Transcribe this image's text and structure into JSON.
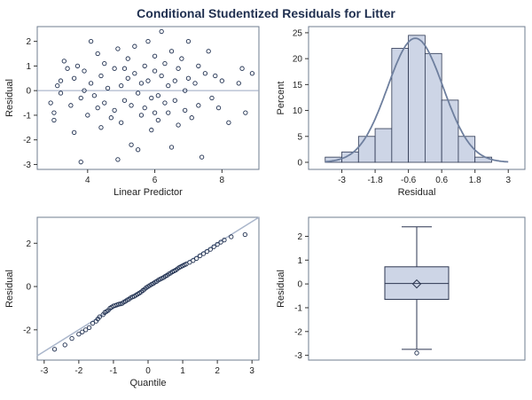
{
  "title": "Conditional Studentized Residuals for Litter",
  "chart_data": [
    {
      "type": "scatter",
      "xlabel": "Linear Predictor",
      "ylabel": "Residual",
      "xlim": [
        2.5,
        9.1
      ],
      "ylim": [
        -3.2,
        2.6
      ],
      "xticks": [
        4,
        6,
        8
      ],
      "yticks": [
        -3,
        -2,
        -1,
        0,
        1,
        2
      ],
      "reference_line_y": 0,
      "points": [
        [
          2.9,
          -0.5
        ],
        [
          3.0,
          -0.9
        ],
        [
          3.0,
          -1.2
        ],
        [
          3.1,
          0.2
        ],
        [
          3.2,
          0.4
        ],
        [
          3.2,
          -0.1
        ],
        [
          3.3,
          1.2
        ],
        [
          3.4,
          0.9
        ],
        [
          3.5,
          -0.6
        ],
        [
          3.6,
          0.5
        ],
        [
          3.6,
          -1.7
        ],
        [
          3.7,
          1.0
        ],
        [
          3.8,
          -0.3
        ],
        [
          3.9,
          0.0
        ],
        [
          3.9,
          0.8
        ],
        [
          4.0,
          -1.0
        ],
        [
          4.1,
          0.3
        ],
        [
          4.1,
          2.0
        ],
        [
          4.2,
          -0.2
        ],
        [
          4.3,
          1.5
        ],
        [
          4.4,
          -1.5
        ],
        [
          4.4,
          0.6
        ],
        [
          4.5,
          -0.5
        ],
        [
          4.5,
          1.1
        ],
        [
          4.6,
          0.1
        ],
        [
          4.7,
          -1.1
        ],
        [
          4.8,
          0.9
        ],
        [
          4.8,
          -0.8
        ],
        [
          4.9,
          1.7
        ],
        [
          5.0,
          0.2
        ],
        [
          5.0,
          -1.3
        ],
        [
          5.1,
          -0.4
        ],
        [
          5.2,
          0.5
        ],
        [
          5.2,
          1.3
        ],
        [
          5.3,
          -2.2
        ],
        [
          5.3,
          -0.6
        ],
        [
          5.4,
          0.7
        ],
        [
          5.4,
          1.8
        ],
        [
          5.5,
          -0.1
        ],
        [
          5.5,
          -2.4
        ],
        [
          5.6,
          0.3
        ],
        [
          5.6,
          -1.0
        ],
        [
          5.7,
          1.0
        ],
        [
          5.7,
          -0.7
        ],
        [
          5.8,
          0.4
        ],
        [
          5.8,
          2.0
        ],
        [
          5.9,
          -0.3
        ],
        [
          5.9,
          -1.6
        ],
        [
          6.0,
          0.8
        ],
        [
          6.0,
          1.4
        ],
        [
          6.1,
          -0.2
        ],
        [
          6.1,
          -1.2
        ],
        [
          6.2,
          0.6
        ],
        [
          6.2,
          2.4
        ],
        [
          6.3,
          -0.5
        ],
        [
          6.3,
          1.1
        ],
        [
          6.4,
          -0.9
        ],
        [
          6.4,
          0.2
        ],
        [
          6.5,
          1.6
        ],
        [
          6.5,
          -2.3
        ],
        [
          6.6,
          -0.4
        ],
        [
          6.7,
          0.9
        ],
        [
          6.7,
          -1.4
        ],
        [
          6.8,
          1.3
        ],
        [
          6.9,
          0.0
        ],
        [
          6.9,
          -0.8
        ],
        [
          7.0,
          0.5
        ],
        [
          7.0,
          2.0
        ],
        [
          7.1,
          -1.1
        ],
        [
          7.2,
          0.3
        ],
        [
          7.3,
          1.0
        ],
        [
          7.3,
          -0.6
        ],
        [
          7.4,
          -2.7
        ],
        [
          7.5,
          0.7
        ],
        [
          7.6,
          1.6
        ],
        [
          7.7,
          -0.3
        ],
        [
          7.8,
          0.6
        ],
        [
          7.9,
          -0.7
        ],
        [
          8.0,
          0.4
        ],
        [
          8.2,
          -1.3
        ],
        [
          8.5,
          0.3
        ],
        [
          8.6,
          0.9
        ],
        [
          8.7,
          -0.9
        ],
        [
          8.9,
          0.7
        ],
        [
          4.9,
          -2.8
        ],
        [
          3.8,
          -2.9
        ],
        [
          6.0,
          -0.9
        ],
        [
          4.3,
          -0.7
        ],
        [
          5.1,
          0.9
        ],
        [
          6.6,
          0.4
        ]
      ]
    },
    {
      "type": "bar",
      "subtype": "histogram",
      "xlabel": "Residual",
      "ylabel": "Percent",
      "xticks": [
        -3,
        -1.8,
        -0.6,
        0.6,
        1.8,
        3
      ],
      "xtick_labels": [
        "-3",
        "-1.8",
        "-0.6",
        "0.6",
        "1.8",
        "3"
      ],
      "yticks": [
        0,
        5,
        10,
        15,
        20,
        25
      ],
      "xlim": [
        -4.2,
        3.6
      ],
      "ylim": [
        0,
        25.5
      ],
      "bin_width": 0.6,
      "bins": [
        {
          "start": -3.6,
          "value": 1
        },
        {
          "start": -3.0,
          "value": 2
        },
        {
          "start": -2.4,
          "value": 5
        },
        {
          "start": -1.8,
          "value": 6.5
        },
        {
          "start": -1.2,
          "value": 22
        },
        {
          "start": -0.6,
          "value": 24.5
        },
        {
          "start": 0.0,
          "value": 21
        },
        {
          "start": 0.6,
          "value": 12
        },
        {
          "start": 1.2,
          "value": 5
        },
        {
          "start": 1.8,
          "value": 1
        }
      ],
      "density_curve": {
        "mean": -0.35,
        "sd": 1.0
      }
    },
    {
      "type": "scatter",
      "subtype": "qq-plot",
      "xlabel": "Quantile",
      "ylabel": "Residual",
      "xlim": [
        -3.2,
        3.2
      ],
      "ylim": [
        -3.4,
        3.2
      ],
      "xticks": [
        -3,
        -2,
        -1,
        0,
        1,
        2,
        3
      ],
      "yticks": [
        -2,
        0,
        2
      ],
      "reference_line": [
        [
          -3.2,
          -3.2
        ],
        [
          3.2,
          3.2
        ]
      ],
      "points": [
        [
          -2.7,
          -2.9
        ],
        [
          -2.4,
          -2.7
        ],
        [
          -2.2,
          -2.4
        ],
        [
          -2.0,
          -2.2
        ],
        [
          -1.9,
          -2.1
        ],
        [
          -1.8,
          -2.0
        ],
        [
          -1.7,
          -1.9
        ],
        [
          -1.6,
          -1.7
        ],
        [
          -1.5,
          -1.6
        ],
        [
          -1.45,
          -1.5
        ],
        [
          -1.4,
          -1.4
        ],
        [
          -1.3,
          -1.3
        ],
        [
          -1.25,
          -1.2
        ],
        [
          -1.2,
          -1.15
        ],
        [
          -1.15,
          -1.1
        ],
        [
          -1.1,
          -1.0
        ],
        [
          -1.05,
          -0.95
        ],
        [
          -1.0,
          -0.9
        ],
        [
          -0.95,
          -0.88
        ],
        [
          -0.9,
          -0.85
        ],
        [
          -0.85,
          -0.82
        ],
        [
          -0.8,
          -0.8
        ],
        [
          -0.75,
          -0.78
        ],
        [
          -0.7,
          -0.72
        ],
        [
          -0.65,
          -0.68
        ],
        [
          -0.6,
          -0.62
        ],
        [
          -0.55,
          -0.58
        ],
        [
          -0.5,
          -0.52
        ],
        [
          -0.45,
          -0.48
        ],
        [
          -0.4,
          -0.45
        ],
        [
          -0.35,
          -0.4
        ],
        [
          -0.3,
          -0.35
        ],
        [
          -0.25,
          -0.3
        ],
        [
          -0.2,
          -0.25
        ],
        [
          -0.15,
          -0.18
        ],
        [
          -0.1,
          -0.12
        ],
        [
          -0.05,
          -0.05
        ],
        [
          0.0,
          0.0
        ],
        [
          0.05,
          0.05
        ],
        [
          0.1,
          0.1
        ],
        [
          0.15,
          0.14
        ],
        [
          0.2,
          0.2
        ],
        [
          0.25,
          0.24
        ],
        [
          0.3,
          0.3
        ],
        [
          0.35,
          0.34
        ],
        [
          0.4,
          0.38
        ],
        [
          0.45,
          0.42
        ],
        [
          0.5,
          0.48
        ],
        [
          0.55,
          0.52
        ],
        [
          0.6,
          0.58
        ],
        [
          0.65,
          0.62
        ],
        [
          0.7,
          0.68
        ],
        [
          0.75,
          0.72
        ],
        [
          0.8,
          0.76
        ],
        [
          0.85,
          0.82
        ],
        [
          0.9,
          0.88
        ],
        [
          0.95,
          0.92
        ],
        [
          1.0,
          0.96
        ],
        [
          1.05,
          1.0
        ],
        [
          1.1,
          1.04
        ],
        [
          1.2,
          1.12
        ],
        [
          1.3,
          1.2
        ],
        [
          1.4,
          1.3
        ],
        [
          1.5,
          1.42
        ],
        [
          1.6,
          1.52
        ],
        [
          1.7,
          1.62
        ],
        [
          1.8,
          1.72
        ],
        [
          1.9,
          1.84
        ],
        [
          2.0,
          1.95
        ],
        [
          2.1,
          2.05
        ],
        [
          2.2,
          2.15
        ],
        [
          2.4,
          2.3
        ],
        [
          2.8,
          2.4
        ]
      ]
    },
    {
      "type": "box",
      "ylabel": "Residual",
      "ylim": [
        -3.2,
        2.8
      ],
      "yticks": [
        -3,
        -2,
        -1,
        0,
        1,
        2
      ],
      "whisker_low": -2.75,
      "q1": -0.65,
      "median": 0.02,
      "q3": 0.72,
      "whisker_high": 2.4,
      "mean": 0.0,
      "outliers": [
        -2.9
      ]
    }
  ]
}
